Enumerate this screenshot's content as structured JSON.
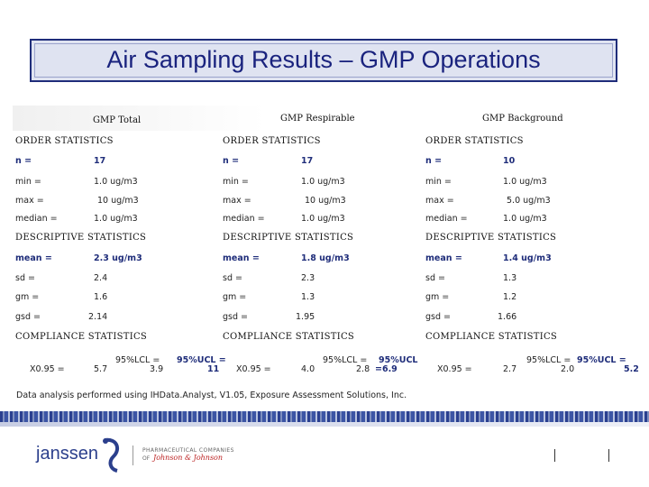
{
  "title": "Air Sampling Results – GMP Operations",
  "columns": [
    {
      "header": "GMP Total",
      "order_label": "ORDER STATISTICS",
      "n_label": "n =",
      "n_value": "17",
      "min_label": "min =",
      "min_value": "1.0 ug/m3",
      "max_label": "max =",
      "max_value": "10 ug/m3",
      "median_label": "median =",
      "median_value": "1.0 ug/m3",
      "desc_label": "DESCRIPTIVE STATISTICS",
      "mean_label": "mean =",
      "mean_value": "2.3 ug/m3",
      "sd_label": "sd =",
      "sd_value": "2.4",
      "gm_label": "gm =",
      "gm_value": "1.6",
      "gsd_label": "gsd =",
      "gsd_value": "2.14",
      "comp_label": "COMPLIANCE STATISTICS",
      "x_label": "X0.95 =",
      "x_value": "5.7",
      "lcl_label": "95%LCL =",
      "lcl_value": "3.9",
      "ucl_label": "95%UCL =",
      "ucl_value": "11"
    },
    {
      "header": "GMP Respirable",
      "order_label": "ORDER STATISTICS",
      "n_label": "n =",
      "n_value": "17",
      "min_label": "min =",
      "min_value": "1.0 ug/m3",
      "max_label": "max =",
      "max_value": "10 ug/m3",
      "median_label": "median =",
      "median_value": "1.0 ug/m3",
      "desc_label": "DESCRIPTIVE STATISTICS",
      "mean_label": "mean =",
      "mean_value": "1.8 ug/m3",
      "sd_label": "sd =",
      "sd_value": "2.3",
      "gm_label": "gm =",
      "gm_value": "1.3",
      "gsd_label": "gsd =",
      "gsd_value": "1.95",
      "comp_label": "COMPLIANCE STATISTICS",
      "x_label": "X0.95 =",
      "x_value": "4.0",
      "lcl_label": "95%LCL =",
      "lcl_value": "2.8",
      "ucl_label": "95%UCL",
      "ucl_value": "=6.9"
    },
    {
      "header": "GMP Background",
      "order_label": "ORDER STATISTICS",
      "n_label": "n =",
      "n_value": "10",
      "min_label": "min =",
      "min_value": "1.0 ug/m3",
      "max_label": "max =",
      "max_value": "5.0 ug/m3",
      "median_label": "median =",
      "median_value": "1.0 ug/m3",
      "desc_label": "DESCRIPTIVE STATISTICS",
      "mean_label": "mean =",
      "mean_value": "1.4 ug/m3",
      "sd_label": "sd =",
      "sd_value": "1.3",
      "gm_label": "gm =",
      "gm_value": "1.2",
      "gsd_label": "gsd =",
      "gsd_value": "1.66",
      "comp_label": "COMPLIANCE STATISTICS",
      "x_label": "X0.95 =",
      "x_value": "2.7",
      "lcl_label": "95%LCL =",
      "lcl_value": "2.0",
      "ucl_label": "95%UCL =",
      "ucl_value": "5.2"
    }
  ],
  "footnote": "Data analysis performed using IHData.Analyst, V1.05, Exposure Assessment Solutions, Inc.",
  "footer": {
    "brand": "janssen",
    "pharma_line": "PHARMACEUTICAL COMPANIES",
    "of_text": "OF",
    "jj_text": "Johnson & Johnson",
    "logo_icon": "janssen-swirl-icon"
  },
  "colors": {
    "title_text": "#1a237e",
    "title_bg": "#dfe3f1",
    "bold_values": "#1f2d7a"
  }
}
